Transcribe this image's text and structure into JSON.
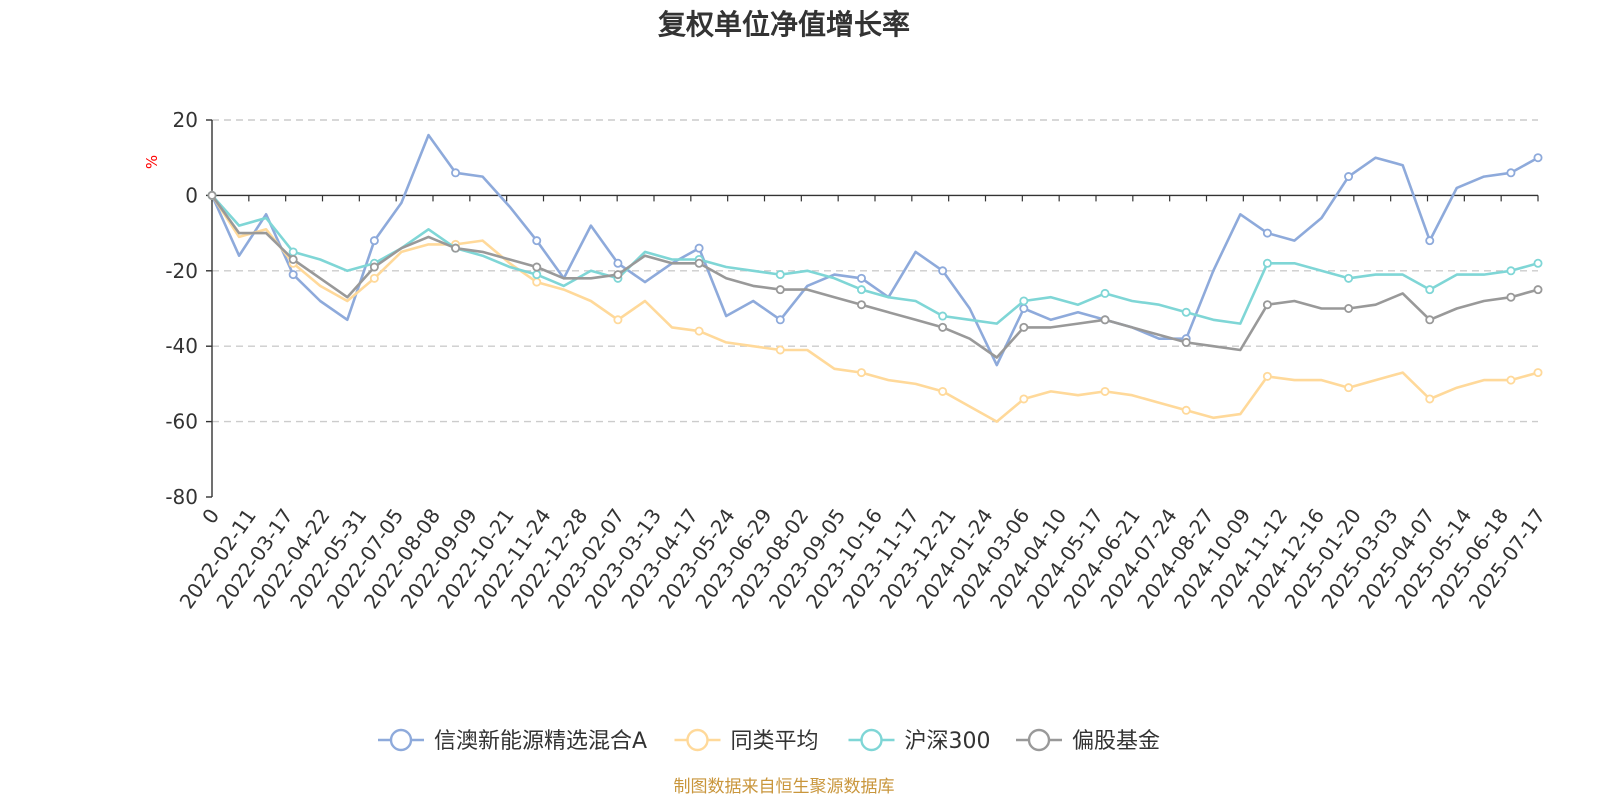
{
  "chart_data": {
    "type": "line",
    "title": "复权单位净值增长率",
    "ylabel": "%",
    "ylabel_color": "#ff0000",
    "ylim": [
      -80,
      20
    ],
    "yticks": [
      20,
      0,
      -20,
      -40,
      -60,
      -80
    ],
    "y_tick_labels": [
      "20",
      "0",
      "-20",
      "-40",
      "-60",
      "-80"
    ],
    "grid": true,
    "legend_position": "bottom-center",
    "x_tick_labels": [
      "0",
      "2022-02-11",
      "2022-03-17",
      "2022-04-22",
      "2022-05-31",
      "2022-07-05",
      "2022-08-08",
      "2022-09-09",
      "2022-10-21",
      "2022-11-24",
      "2022-12-28",
      "2023-02-07",
      "2023-03-13",
      "2023-04-17",
      "2023-05-24",
      "2023-06-29",
      "2023-08-02",
      "2023-09-05",
      "2023-10-16",
      "2023-11-17",
      "2023-12-21",
      "2024-01-24",
      "2024-03-06",
      "2024-04-10",
      "2024-05-17",
      "2024-06-21",
      "2024-07-24",
      "2024-08-27",
      "2024-10-09",
      "2024-11-12",
      "2024-12-16",
      "2025-01-20",
      "2025-03-03",
      "2025-04-07",
      "2025-05-14",
      "2025-06-18",
      "2025-07-17"
    ],
    "series": [
      {
        "name": "信澳新能源精选混合A",
        "color": "#8eaadb",
        "values": [
          0,
          -16,
          -5,
          -21,
          -28,
          -33,
          -12,
          -2,
          16,
          6,
          5,
          -3,
          -12,
          -22,
          -8,
          -18,
          -23,
          -18,
          -14,
          -32,
          -28,
          -33,
          -24,
          -21,
          -22,
          -27,
          -15,
          -20,
          -30,
          -45,
          -30,
          -33,
          -31,
          -33,
          -35,
          -38,
          -38,
          -20,
          -5,
          -10,
          -12,
          -6,
          5,
          10,
          8,
          -12,
          2,
          5,
          6,
          10
        ]
      },
      {
        "name": "同类平均",
        "color": "#ffd99a",
        "values": [
          0,
          -11,
          -9,
          -18,
          -24,
          -28,
          -22,
          -15,
          -13,
          -13,
          -12,
          -18,
          -23,
          -25,
          -28,
          -33,
          -28,
          -35,
          -36,
          -39,
          -40,
          -41,
          -41,
          -46,
          -47,
          -49,
          -50,
          -52,
          -56,
          -60,
          -54,
          -52,
          -53,
          -52,
          -53,
          -55,
          -57,
          -59,
          -58,
          -48,
          -49,
          -49,
          -51,
          -49,
          -47,
          -54,
          -51,
          -49,
          -49,
          -47
        ]
      },
      {
        "name": "沪深300",
        "color": "#7fd6d6",
        "values": [
          0,
          -8,
          -6,
          -15,
          -17,
          -20,
          -18,
          -14,
          -9,
          -14,
          -16,
          -19,
          -21,
          -24,
          -20,
          -22,
          -15,
          -17,
          -17,
          -19,
          -20,
          -21,
          -20,
          -22,
          -25,
          -27,
          -28,
          -32,
          -33,
          -34,
          -28,
          -27,
          -29,
          -26,
          -28,
          -29,
          -31,
          -33,
          -34,
          -18,
          -18,
          -20,
          -22,
          -21,
          -21,
          -25,
          -21,
          -21,
          -20,
          -18
        ]
      },
      {
        "name": "偏股基金",
        "color": "#999999",
        "values": [
          0,
          -10,
          -10,
          -17,
          -22,
          -27,
          -19,
          -14,
          -11,
          -14,
          -15,
          -17,
          -19,
          -22,
          -22,
          -21,
          -16,
          -18,
          -18,
          -22,
          -24,
          -25,
          -25,
          -27,
          -29,
          -31,
          -33,
          -35,
          -38,
          -43,
          -35,
          -35,
          -34,
          -33,
          -35,
          -37,
          -39,
          -40,
          -41,
          -29,
          -28,
          -30,
          -30,
          -29,
          -26,
          -33,
          -30,
          -28,
          -27,
          -25
        ]
      }
    ],
    "source": "制图数据来自恒生聚源数据库",
    "source_color": "#c9963c"
  }
}
